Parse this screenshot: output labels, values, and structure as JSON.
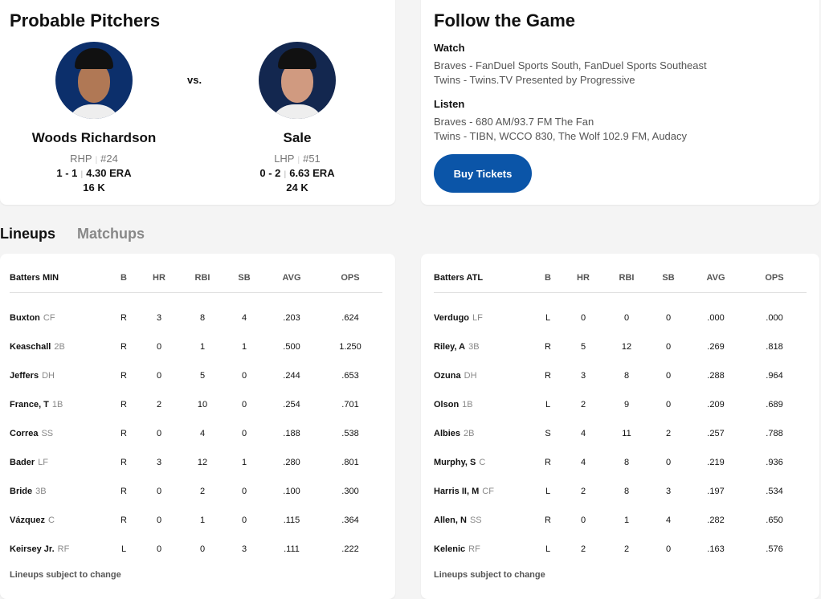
{
  "probable": {
    "title": "Probable Pitchers",
    "vs": "vs.",
    "pitchers": [
      {
        "name": "Woods Richardson",
        "hand": "RHP",
        "number": "#24",
        "record": "1 - 1",
        "era": "4.30 ERA",
        "k": "16 K",
        "bg": "#0c2f6b",
        "skin": "#b07855"
      },
      {
        "name": "Sale",
        "hand": "LHP",
        "number": "#51",
        "record": "0 - 2",
        "era": "6.63 ERA",
        "k": "24 K",
        "bg": "#13274f",
        "skin": "#d09a80"
      }
    ]
  },
  "follow": {
    "title": "Follow the Game",
    "watch_label": "Watch",
    "watch": [
      "Braves - FanDuel Sports South, FanDuel Sports Southeast",
      "Twins - Twins.TV Presented by Progressive"
    ],
    "listen_label": "Listen",
    "listen": [
      "Braves - 680 AM/93.7 FM The Fan",
      "Twins - TIBN, WCCO 830, The Wolf 102.9 FM, Audacy"
    ],
    "buy_label": "Buy Tickets"
  },
  "tabs": [
    {
      "label": "Lineups",
      "active": true
    },
    {
      "label": "Matchups",
      "active": false
    }
  ],
  "columns": [
    "B",
    "HR",
    "RBI",
    "SB",
    "AVG",
    "OPS"
  ],
  "lineups": [
    {
      "title": "Batters MIN",
      "note": "Lineups subject to change",
      "rows": [
        [
          "Buxton",
          "CF",
          "R",
          "3",
          "8",
          "4",
          ".203",
          ".624"
        ],
        [
          "Keaschall",
          "2B",
          "R",
          "0",
          "1",
          "1",
          ".500",
          "1.250"
        ],
        [
          "Jeffers",
          "DH",
          "R",
          "0",
          "5",
          "0",
          ".244",
          ".653"
        ],
        [
          "France, T",
          "1B",
          "R",
          "2",
          "10",
          "0",
          ".254",
          ".701"
        ],
        [
          "Correa",
          "SS",
          "R",
          "0",
          "4",
          "0",
          ".188",
          ".538"
        ],
        [
          "Bader",
          "LF",
          "R",
          "3",
          "12",
          "1",
          ".280",
          ".801"
        ],
        [
          "Bride",
          "3B",
          "R",
          "0",
          "2",
          "0",
          ".100",
          ".300"
        ],
        [
          "Vázquez",
          "C",
          "R",
          "0",
          "1",
          "0",
          ".115",
          ".364"
        ],
        [
          "Keirsey Jr.",
          "RF",
          "L",
          "0",
          "0",
          "3",
          ".111",
          ".222"
        ]
      ]
    },
    {
      "title": "Batters ATL",
      "note": "Lineups subject to change",
      "rows": [
        [
          "Verdugo",
          "LF",
          "L",
          "0",
          "0",
          "0",
          ".000",
          ".000"
        ],
        [
          "Riley, A",
          "3B",
          "R",
          "5",
          "12",
          "0",
          ".269",
          ".818"
        ],
        [
          "Ozuna",
          "DH",
          "R",
          "3",
          "8",
          "0",
          ".288",
          ".964"
        ],
        [
          "Olson",
          "1B",
          "L",
          "2",
          "9",
          "0",
          ".209",
          ".689"
        ],
        [
          "Albies",
          "2B",
          "S",
          "4",
          "11",
          "2",
          ".257",
          ".788"
        ],
        [
          "Murphy, S",
          "C",
          "R",
          "4",
          "8",
          "0",
          ".219",
          ".936"
        ],
        [
          "Harris II, M",
          "CF",
          "L",
          "2",
          "8",
          "3",
          ".197",
          ".534"
        ],
        [
          "Allen, N",
          "SS",
          "R",
          "0",
          "1",
          "4",
          ".282",
          ".650"
        ],
        [
          "Kelenic",
          "RF",
          "L",
          "2",
          "2",
          "0",
          ".163",
          ".576"
        ]
      ]
    }
  ]
}
